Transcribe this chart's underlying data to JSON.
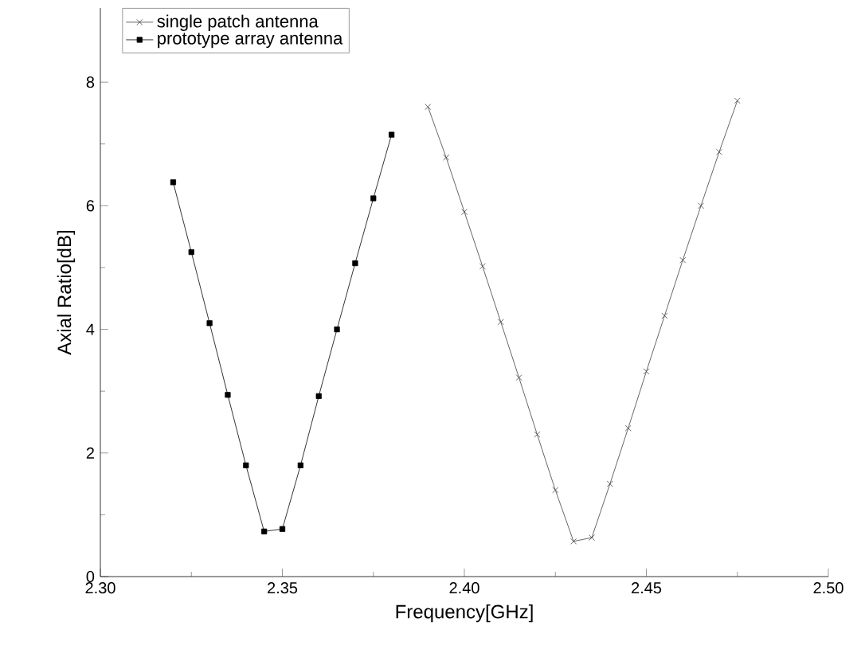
{
  "chart_data": {
    "type": "line",
    "xlabel": "Frequency[GHz]",
    "ylabel": "Axial Ratio[dB]",
    "xlim": [
      2.3,
      2.5
    ],
    "ylim": [
      0,
      9.2
    ],
    "xticks": [
      {
        "value": 2.3,
        "label": "2.30"
      },
      {
        "value": 2.35,
        "label": "2.35"
      },
      {
        "value": 2.4,
        "label": "2.40"
      },
      {
        "value": 2.45,
        "label": "2.45"
      },
      {
        "value": 2.5,
        "label": "2.50"
      }
    ],
    "yticks": [
      0,
      2,
      4,
      6,
      8
    ],
    "legend": "top left",
    "line_style": "solid",
    "series": [
      {
        "name": "single patch antenna",
        "color": "#404040",
        "marker": "cross",
        "x": [
          2.39,
          2.395,
          2.4,
          2.405,
          2.41,
          2.415,
          2.42,
          2.425,
          2.43,
          2.435,
          2.44,
          2.445,
          2.45,
          2.455,
          2.46,
          2.465,
          2.47,
          2.475
        ],
        "values": [
          7.6,
          6.78,
          5.9,
          5.02,
          4.12,
          3.22,
          2.3,
          1.4,
          0.57,
          0.63,
          1.5,
          2.4,
          3.32,
          4.22,
          5.12,
          6.0,
          6.87,
          7.7
        ]
      },
      {
        "name": "prototype array antenna",
        "color": "#000000",
        "marker": "square",
        "x": [
          2.32,
          2.325,
          2.33,
          2.335,
          2.34,
          2.345,
          2.35,
          2.355,
          2.36,
          2.365,
          2.37,
          2.375,
          2.38
        ],
        "values": [
          6.38,
          5.25,
          4.1,
          2.94,
          1.8,
          0.73,
          0.77,
          1.8,
          2.92,
          4.0,
          5.07,
          6.12,
          7.15
        ]
      }
    ]
  }
}
